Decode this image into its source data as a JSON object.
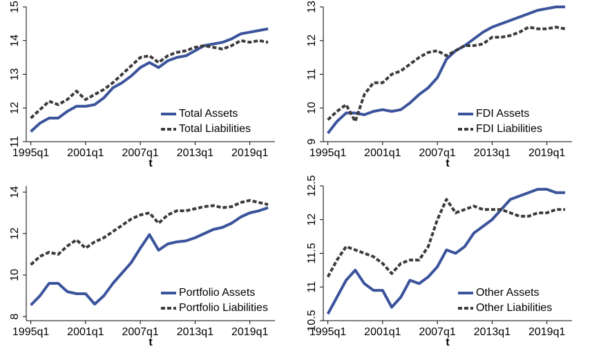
{
  "chart_data": [
    {
      "type": "line",
      "xlabel": "t",
      "legend": "lower right",
      "x": [
        140,
        144,
        148,
        152,
        156,
        160,
        164,
        168,
        172,
        176,
        180,
        184,
        188,
        192,
        196,
        200,
        204,
        208,
        212,
        216,
        220,
        224,
        228,
        232,
        236,
        240,
        244
      ],
      "xlim": [
        138,
        247
      ],
      "xticks": [
        {
          "value": 140,
          "label": "1995q1"
        },
        {
          "value": 164,
          "label": "2001q1"
        },
        {
          "value": 188,
          "label": "2007q1"
        },
        {
          "value": 212,
          "label": "2013q1"
        },
        {
          "value": 236,
          "label": "2019q1"
        }
      ],
      "ylim": [
        11,
        15
      ],
      "yticks": [
        11,
        12,
        13,
        14,
        15
      ],
      "series": [
        {
          "name": "Total Assets",
          "color": "#3a539b",
          "style": "solid",
          "values": [
            11.3,
            11.55,
            11.7,
            11.7,
            11.9,
            12.05,
            12.05,
            12.1,
            12.3,
            12.6,
            12.75,
            12.95,
            13.2,
            13.35,
            13.2,
            13.4,
            13.5,
            13.55,
            13.7,
            13.85,
            13.9,
            13.95,
            14.05,
            14.2,
            14.25,
            14.3,
            14.35
          ]
        },
        {
          "name": "Total Liabilities",
          "color": "#3b3b3b",
          "style": "dashed",
          "values": [
            11.7,
            11.95,
            12.2,
            12.1,
            12.25,
            12.5,
            12.25,
            12.4,
            12.55,
            12.75,
            13.0,
            13.25,
            13.5,
            13.55,
            13.35,
            13.55,
            13.65,
            13.7,
            13.8,
            13.85,
            13.8,
            13.75,
            13.85,
            14.0,
            13.95,
            14.0,
            13.95
          ]
        }
      ]
    },
    {
      "type": "line",
      "xlabel": "t",
      "legend": "lower right",
      "x": [
        140,
        144,
        148,
        152,
        156,
        160,
        164,
        168,
        172,
        176,
        180,
        184,
        188,
        192,
        196,
        200,
        204,
        208,
        212,
        216,
        220,
        224,
        228,
        232,
        236,
        240,
        244
      ],
      "xlim": [
        138,
        247
      ],
      "xticks": [
        {
          "value": 140,
          "label": "1995q1"
        },
        {
          "value": 164,
          "label": "2001q1"
        },
        {
          "value": 188,
          "label": "2007q1"
        },
        {
          "value": 212,
          "label": "2013q1"
        },
        {
          "value": 236,
          "label": "2019q1"
        }
      ],
      "ylim": [
        9,
        13
      ],
      "yticks": [
        9,
        10,
        11,
        12,
        13
      ],
      "series": [
        {
          "name": "FDI Assets",
          "color": "#3a539b",
          "style": "solid",
          "values": [
            9.25,
            9.6,
            9.85,
            9.85,
            9.8,
            9.9,
            9.95,
            9.9,
            9.95,
            10.15,
            10.4,
            10.6,
            10.9,
            11.45,
            11.7,
            11.85,
            12.05,
            12.25,
            12.4,
            12.5,
            12.6,
            12.7,
            12.8,
            12.9,
            12.95,
            13.0,
            13.0
          ]
        },
        {
          "name": "FDI Liabilities",
          "color": "#3b3b3b",
          "style": "dashed",
          "values": [
            9.65,
            9.9,
            10.1,
            9.6,
            10.4,
            10.75,
            10.75,
            11.0,
            11.1,
            11.3,
            11.5,
            11.65,
            11.7,
            11.55,
            11.7,
            11.85,
            11.85,
            11.9,
            12.1,
            12.1,
            12.15,
            12.25,
            12.4,
            12.35,
            12.35,
            12.4,
            12.35
          ]
        }
      ]
    },
    {
      "type": "line",
      "xlabel": "t",
      "legend": "lower right",
      "x": [
        140,
        144,
        148,
        152,
        156,
        160,
        164,
        168,
        172,
        176,
        180,
        184,
        188,
        192,
        196,
        200,
        204,
        208,
        212,
        216,
        220,
        224,
        228,
        232,
        236,
        240,
        244
      ],
      "xlim": [
        138,
        247
      ],
      "xticks": [
        {
          "value": 140,
          "label": "1995q1"
        },
        {
          "value": 164,
          "label": "2001q1"
        },
        {
          "value": 188,
          "label": "2007q1"
        },
        {
          "value": 212,
          "label": "2013q1"
        },
        {
          "value": 236,
          "label": "2019q1"
        }
      ],
      "ylim": [
        7.8,
        14.3
      ],
      "yticks": [
        8,
        10,
        12,
        14
      ],
      "series": [
        {
          "name": "Portfolio Assets",
          "color": "#3a539b",
          "style": "solid",
          "values": [
            8.55,
            9.0,
            9.6,
            9.6,
            9.2,
            9.1,
            9.1,
            8.6,
            9.0,
            9.6,
            10.1,
            10.6,
            11.3,
            11.95,
            11.2,
            11.5,
            11.6,
            11.65,
            11.8,
            12.0,
            12.2,
            12.3,
            12.5,
            12.8,
            13.0,
            13.1,
            13.25
          ]
        },
        {
          "name": "Portfolio Liabilities",
          "color": "#3b3b3b",
          "style": "dashed",
          "values": [
            10.5,
            10.9,
            11.1,
            11.0,
            11.4,
            11.7,
            11.3,
            11.6,
            11.8,
            12.1,
            12.4,
            12.7,
            12.9,
            13.0,
            12.5,
            12.9,
            13.1,
            13.1,
            13.2,
            13.3,
            13.35,
            13.25,
            13.3,
            13.5,
            13.6,
            13.5,
            13.4
          ]
        }
      ]
    },
    {
      "type": "line",
      "xlabel": "t",
      "legend": "lower right",
      "x": [
        140,
        144,
        148,
        152,
        156,
        160,
        164,
        168,
        172,
        176,
        180,
        184,
        188,
        192,
        196,
        200,
        204,
        208,
        212,
        216,
        220,
        224,
        228,
        232,
        236,
        240,
        244
      ],
      "xlim": [
        138,
        247
      ],
      "xticks": [
        {
          "value": 140,
          "label": "1995q1"
        },
        {
          "value": 164,
          "label": "2001q1"
        },
        {
          "value": 188,
          "label": "2007q1"
        },
        {
          "value": 212,
          "label": "2013q1"
        },
        {
          "value": 236,
          "label": "2019q1"
        }
      ],
      "ylim": [
        10.5,
        12.5
      ],
      "yticks": [
        10.5,
        11,
        11.5,
        12,
        12.5
      ],
      "series": [
        {
          "name": "Other Assets",
          "color": "#3a539b",
          "style": "solid",
          "values": [
            10.6,
            10.85,
            11.1,
            11.25,
            11.05,
            10.95,
            10.95,
            10.7,
            10.85,
            11.1,
            11.05,
            11.15,
            11.3,
            11.55,
            11.5,
            11.6,
            11.8,
            11.9,
            12.0,
            12.15,
            12.3,
            12.35,
            12.4,
            12.45,
            12.45,
            12.4,
            12.4
          ]
        },
        {
          "name": "Other Liabilities",
          "color": "#3b3b3b",
          "style": "dashed",
          "values": [
            11.15,
            11.4,
            11.6,
            11.55,
            11.5,
            11.45,
            11.35,
            11.2,
            11.35,
            11.4,
            11.4,
            11.6,
            12.0,
            12.3,
            12.1,
            12.15,
            12.2,
            12.15,
            12.15,
            12.15,
            12.1,
            12.05,
            12.05,
            12.1,
            12.1,
            12.15,
            12.15
          ]
        }
      ]
    }
  ]
}
